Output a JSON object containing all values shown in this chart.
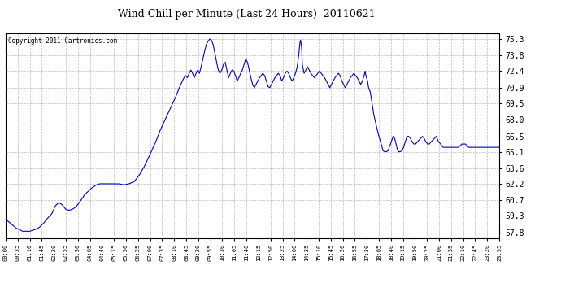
{
  "title": "Wind Chill per Minute (Last 24 Hours)  20110621",
  "copyright": "Copyright 2011 Cartronics.com",
  "line_color": "#0000CC",
  "bg_color": "#ffffff",
  "plot_bg_color": "#ffffff",
  "grid_color": "#aaaaaa",
  "yticks": [
    57.8,
    59.3,
    60.7,
    62.2,
    63.6,
    65.1,
    66.5,
    68.0,
    69.5,
    70.9,
    72.4,
    73.8,
    75.3
  ],
  "ylim": [
    57.3,
    75.8
  ],
  "xtick_labels": [
    "00:00",
    "00:35",
    "01:10",
    "01:45",
    "02:20",
    "02:55",
    "03:30",
    "04:05",
    "04:40",
    "05:15",
    "05:50",
    "06:25",
    "07:00",
    "07:35",
    "08:10",
    "08:45",
    "09:20",
    "09:55",
    "10:30",
    "11:05",
    "11:40",
    "12:15",
    "12:50",
    "13:25",
    "14:00",
    "14:35",
    "15:10",
    "15:45",
    "16:20",
    "16:55",
    "17:30",
    "18:05",
    "18:40",
    "19:15",
    "19:50",
    "20:25",
    "21:00",
    "21:35",
    "22:10",
    "22:45",
    "23:20",
    "23:55"
  ],
  "waypoints": [
    [
      0,
      59.0
    ],
    [
      30,
      58.2
    ],
    [
      50,
      57.9
    ],
    [
      70,
      57.9
    ],
    [
      80,
      58.0
    ],
    [
      90,
      58.1
    ],
    [
      100,
      58.3
    ],
    [
      110,
      58.6
    ],
    [
      120,
      59.0
    ],
    [
      135,
      59.5
    ],
    [
      145,
      60.2
    ],
    [
      155,
      60.5
    ],
    [
      165,
      60.3
    ],
    [
      175,
      59.9
    ],
    [
      185,
      59.8
    ],
    [
      195,
      59.9
    ],
    [
      205,
      60.1
    ],
    [
      215,
      60.5
    ],
    [
      230,
      61.2
    ],
    [
      250,
      61.8
    ],
    [
      265,
      62.1
    ],
    [
      275,
      62.2
    ],
    [
      290,
      62.2
    ],
    [
      310,
      62.2
    ],
    [
      330,
      62.2
    ],
    [
      345,
      62.1
    ],
    [
      360,
      62.2
    ],
    [
      375,
      62.4
    ],
    [
      390,
      63.0
    ],
    [
      405,
      63.8
    ],
    [
      420,
      64.8
    ],
    [
      435,
      65.8
    ],
    [
      450,
      67.0
    ],
    [
      465,
      68.0
    ],
    [
      480,
      69.0
    ],
    [
      495,
      70.0
    ],
    [
      505,
      70.8
    ],
    [
      515,
      71.5
    ],
    [
      520,
      71.8
    ],
    [
      525,
      72.0
    ],
    [
      530,
      71.8
    ],
    [
      535,
      72.2
    ],
    [
      540,
      72.5
    ],
    [
      545,
      72.2
    ],
    [
      550,
      71.8
    ],
    [
      555,
      72.2
    ],
    [
      560,
      72.5
    ],
    [
      565,
      72.2
    ],
    [
      570,
      72.8
    ],
    [
      575,
      73.5
    ],
    [
      580,
      74.2
    ],
    [
      585,
      74.8
    ],
    [
      590,
      75.1
    ],
    [
      595,
      75.3
    ],
    [
      600,
      75.2
    ],
    [
      605,
      74.8
    ],
    [
      610,
      74.0
    ],
    [
      615,
      73.2
    ],
    [
      620,
      72.5
    ],
    [
      625,
      72.2
    ],
    [
      630,
      72.5
    ],
    [
      635,
      73.0
    ],
    [
      640,
      73.2
    ],
    [
      645,
      72.5
    ],
    [
      650,
      71.8
    ],
    [
      655,
      72.2
    ],
    [
      660,
      72.5
    ],
    [
      665,
      72.4
    ],
    [
      670,
      72.0
    ],
    [
      675,
      71.5
    ],
    [
      680,
      71.8
    ],
    [
      685,
      72.2
    ],
    [
      690,
      72.5
    ],
    [
      695,
      73.0
    ],
    [
      700,
      73.5
    ],
    [
      705,
      73.2
    ],
    [
      710,
      72.5
    ],
    [
      715,
      71.8
    ],
    [
      720,
      71.2
    ],
    [
      725,
      70.9
    ],
    [
      730,
      71.2
    ],
    [
      735,
      71.5
    ],
    [
      740,
      71.8
    ],
    [
      745,
      72.0
    ],
    [
      750,
      72.2
    ],
    [
      755,
      72.0
    ],
    [
      760,
      71.5
    ],
    [
      765,
      71.0
    ],
    [
      770,
      70.9
    ],
    [
      775,
      71.2
    ],
    [
      780,
      71.5
    ],
    [
      785,
      71.8
    ],
    [
      790,
      72.0
    ],
    [
      795,
      72.2
    ],
    [
      800,
      72.0
    ],
    [
      805,
      71.5
    ],
    [
      810,
      71.8
    ],
    [
      815,
      72.2
    ],
    [
      820,
      72.4
    ],
    [
      825,
      72.2
    ],
    [
      830,
      71.8
    ],
    [
      835,
      71.5
    ],
    [
      840,
      71.8
    ],
    [
      845,
      72.2
    ],
    [
      850,
      72.8
    ],
    [
      855,
      74.0
    ],
    [
      858,
      75.0
    ],
    [
      860,
      75.2
    ],
    [
      863,
      74.5
    ],
    [
      865,
      73.0
    ],
    [
      870,
      72.2
    ],
    [
      875,
      72.5
    ],
    [
      880,
      72.8
    ],
    [
      885,
      72.5
    ],
    [
      890,
      72.2
    ],
    [
      895,
      72.0
    ],
    [
      900,
      71.8
    ],
    [
      905,
      72.0
    ],
    [
      910,
      72.2
    ],
    [
      915,
      72.4
    ],
    [
      920,
      72.2
    ],
    [
      925,
      72.0
    ],
    [
      930,
      71.8
    ],
    [
      935,
      71.5
    ],
    [
      940,
      71.2
    ],
    [
      945,
      70.9
    ],
    [
      950,
      71.2
    ],
    [
      955,
      71.5
    ],
    [
      960,
      71.8
    ],
    [
      965,
      72.0
    ],
    [
      970,
      72.2
    ],
    [
      975,
      72.0
    ],
    [
      980,
      71.5
    ],
    [
      985,
      71.2
    ],
    [
      990,
      70.9
    ],
    [
      995,
      71.2
    ],
    [
      1000,
      71.5
    ],
    [
      1005,
      71.8
    ],
    [
      1010,
      72.0
    ],
    [
      1015,
      72.2
    ],
    [
      1020,
      72.0
    ],
    [
      1025,
      71.8
    ],
    [
      1030,
      71.5
    ],
    [
      1035,
      71.2
    ],
    [
      1040,
      71.5
    ],
    [
      1045,
      72.0
    ],
    [
      1048,
      72.4
    ],
    [
      1050,
      72.0
    ],
    [
      1055,
      71.5
    ],
    [
      1058,
      70.9
    ],
    [
      1063,
      70.5
    ],
    [
      1068,
      69.5
    ],
    [
      1073,
      68.5
    ],
    [
      1080,
      67.5
    ],
    [
      1088,
      66.5
    ],
    [
      1095,
      65.8
    ],
    [
      1100,
      65.2
    ],
    [
      1105,
      65.1
    ],
    [
      1110,
      65.1
    ],
    [
      1115,
      65.2
    ],
    [
      1118,
      65.5
    ],
    [
      1122,
      65.8
    ],
    [
      1126,
      66.2
    ],
    [
      1130,
      66.5
    ],
    [
      1134,
      66.3
    ],
    [
      1138,
      65.8
    ],
    [
      1142,
      65.3
    ],
    [
      1146,
      65.1
    ],
    [
      1150,
      65.1
    ],
    [
      1155,
      65.2
    ],
    [
      1160,
      65.5
    ],
    [
      1165,
      66.0
    ],
    [
      1170,
      66.5
    ],
    [
      1175,
      66.5
    ],
    [
      1180,
      66.3
    ],
    [
      1185,
      66.0
    ],
    [
      1190,
      65.8
    ],
    [
      1195,
      65.8
    ],
    [
      1200,
      66.0
    ],
    [
      1210,
      66.3
    ],
    [
      1215,
      66.5
    ],
    [
      1220,
      66.3
    ],
    [
      1225,
      66.0
    ],
    [
      1230,
      65.8
    ],
    [
      1235,
      65.8
    ],
    [
      1240,
      66.0
    ],
    [
      1250,
      66.3
    ],
    [
      1255,
      66.5
    ],
    [
      1258,
      66.3
    ],
    [
      1262,
      66.0
    ],
    [
      1268,
      65.8
    ],
    [
      1275,
      65.5
    ],
    [
      1280,
      65.5
    ],
    [
      1290,
      65.5
    ],
    [
      1300,
      65.5
    ],
    [
      1310,
      65.5
    ],
    [
      1320,
      65.5
    ],
    [
      1330,
      65.8
    ],
    [
      1340,
      65.8
    ],
    [
      1350,
      65.5
    ],
    [
      1360,
      65.5
    ],
    [
      1370,
      65.5
    ],
    [
      1380,
      65.5
    ],
    [
      1390,
      65.5
    ],
    [
      1400,
      65.5
    ],
    [
      1410,
      65.5
    ],
    [
      1420,
      65.5
    ],
    [
      1430,
      65.5
    ],
    [
      1439,
      65.5
    ]
  ]
}
